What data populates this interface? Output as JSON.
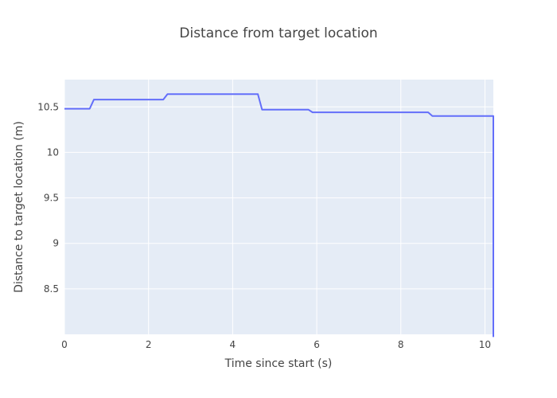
{
  "chart_data": {
    "type": "line",
    "title": "Distance from target location",
    "xlabel": "Time since start (s)",
    "ylabel": "Distance to target location (m)",
    "xlim": [
      0,
      10.2
    ],
    "ylim": [
      8.0,
      10.8
    ],
    "xticks": [
      0,
      2,
      4,
      6,
      8,
      10
    ],
    "yticks": [
      8.5,
      9,
      9.5,
      10,
      10.5
    ],
    "grid": true,
    "colors": {
      "plot_bg": "#e5ecf6",
      "grid": "#ffffff",
      "line": "#636efa"
    },
    "series": [
      {
        "x": [
          0,
          0.6,
          0.7,
          2.35,
          2.45,
          4.6,
          4.7,
          5.8,
          5.9,
          8.65,
          8.75,
          10.18,
          10.2,
          10.2
        ],
        "y": [
          10.48,
          10.48,
          10.58,
          10.58,
          10.64,
          10.64,
          10.47,
          10.47,
          10.44,
          10.44,
          10.4,
          10.4,
          10.4,
          7.97
        ]
      }
    ]
  }
}
